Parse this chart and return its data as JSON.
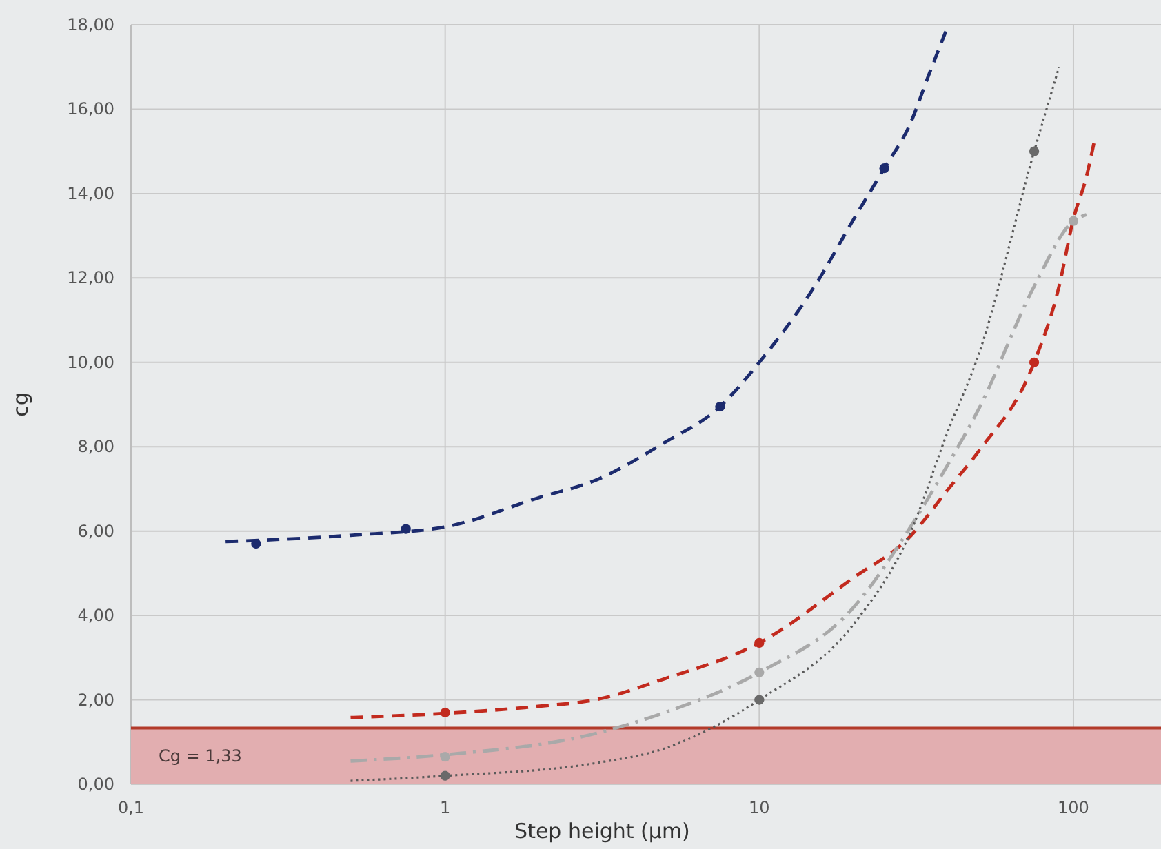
{
  "chart_data": {
    "type": "scatter",
    "xlabel": "Step height (µm)",
    "ylabel": "cg",
    "log": "x",
    "grid": true,
    "xlim": [
      0.1,
      190
    ],
    "xticks": [
      {
        "value": 0.1,
        "label": "0,1"
      },
      1,
      10,
      100
    ],
    "ylim": [
      0,
      18
    ],
    "yticks": [
      {
        "value": 0,
        "label": "0,00"
      },
      {
        "value": 2,
        "label": "2,00"
      },
      {
        "value": 4,
        "label": "4,00"
      },
      {
        "value": 6,
        "label": "6,00"
      },
      {
        "value": 8,
        "label": "8,00"
      },
      {
        "value": 10,
        "label": "10,00"
      },
      {
        "value": 12,
        "label": "12,00"
      },
      {
        "value": 14,
        "label": "14,00"
      },
      {
        "value": 16,
        "label": "16,00"
      },
      {
        "value": 18,
        "label": "18,00"
      }
    ],
    "bands": [
      {
        "axis": "y",
        "from": 0,
        "to": 1.33,
        "label": "Cg = 1,33",
        "color": "#e2aeb0"
      }
    ],
    "ref_lines": [
      {
        "axis": "y",
        "value": 1.33,
        "color": "#b23a2a",
        "line_style": "solid"
      }
    ],
    "series": [
      {
        "type": "line",
        "color": "#1c2b6e",
        "line_style": "dashed",
        "marker": "none",
        "x": [
          0.2,
          0.5,
          1,
          2,
          3,
          5,
          7.5,
          10,
          15,
          20,
          25,
          30,
          35,
          40
        ],
        "values": [
          5.75,
          5.9,
          6.1,
          6.8,
          7.2,
          8.1,
          8.95,
          10,
          11.8,
          13.4,
          14.6,
          15.6,
          16.9,
          18
        ]
      },
      {
        "type": "line",
        "color": "#c22a1e",
        "line_style": "dashed",
        "marker": "none",
        "x": [
          0.5,
          1,
          2,
          3,
          5,
          10,
          20,
          30,
          40,
          50,
          75,
          90,
          100,
          110,
          117
        ],
        "values": [
          1.58,
          1.68,
          1.85,
          2,
          2.5,
          3.35,
          4.9,
          5.85,
          7,
          7.9,
          10,
          11.8,
          13.4,
          14.4,
          15.3
        ]
      },
      {
        "type": "line",
        "color": "#a9a9a9",
        "line_style": "dashdot",
        "marker": "none",
        "x": [
          0.5,
          1,
          3,
          5,
          10,
          20,
          30,
          40,
          50,
          75,
          100,
          110
        ],
        "values": [
          0.55,
          0.7,
          1.2,
          1.7,
          2.65,
          4.2,
          6.05,
          7.6,
          8.9,
          11.8,
          13.35,
          13.5
        ]
      },
      {
        "type": "line",
        "color": "#5a5a5a",
        "line_style": "dotted",
        "marker": "none",
        "x": [
          0.5,
          1,
          3,
          5,
          10,
          20,
          30,
          40,
          50,
          75,
          90
        ],
        "values": [
          0.08,
          0.2,
          0.5,
          0.85,
          2,
          3.8,
          5.9,
          8.4,
          10.2,
          15,
          17
        ]
      },
      {
        "color": "#1c2b6e",
        "marker": "circle",
        "x": [
          0.25,
          0.75,
          7.5,
          25
        ],
        "values": [
          5.7,
          6.05,
          8.95,
          14.6
        ]
      },
      {
        "color": "#c22a1e",
        "marker": "circle",
        "x": [
          1,
          10,
          75
        ],
        "values": [
          1.7,
          3.35,
          10
        ]
      },
      {
        "color": "#a9a9a9",
        "marker": "circle",
        "x": [
          1,
          10,
          100
        ],
        "values": [
          0.65,
          2.65,
          13.35
        ]
      },
      {
        "color": "#6a6a6a",
        "marker": "circle",
        "x": [
          1,
          10,
          75
        ],
        "values": [
          0.2,
          2,
          15
        ]
      }
    ]
  }
}
